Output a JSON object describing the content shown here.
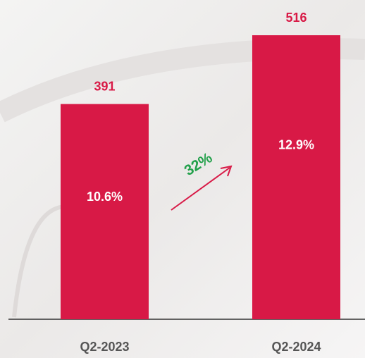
{
  "chart_data": {
    "type": "bar",
    "categories": [
      "Q2-2023",
      "Q2-2024"
    ],
    "values": [
      391,
      516
    ],
    "inner_labels": [
      "10.6%",
      "12.9%"
    ],
    "color": "#d81946",
    "annotation": "32%"
  }
}
